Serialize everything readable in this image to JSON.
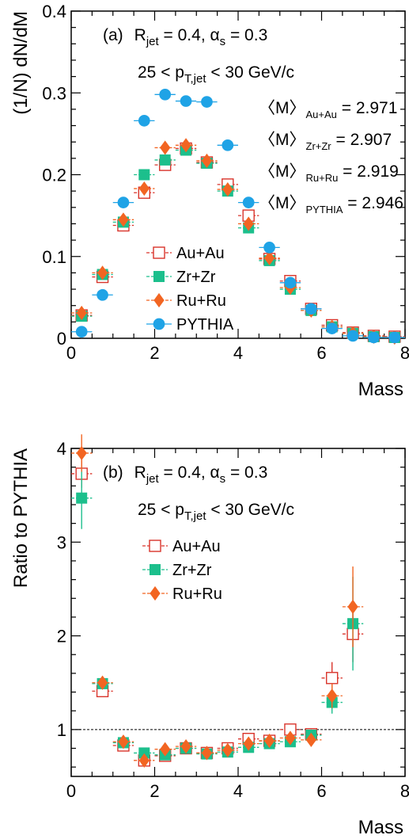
{
  "chart_data": [
    {
      "type": "scatter",
      "panel_label": "(a)",
      "annotation_main": "R",
      "annotation_main_sub": "jet",
      "annotation_main_rest": " = 0.4, α",
      "annotation_main_sub2": "s",
      "annotation_main_rest2": " = 0.3",
      "annotation_pt_pre": "25 < p",
      "annotation_pt_sub": "T,jet",
      "annotation_pt_post": " < 30 GeV/c",
      "xlabel": "Mass",
      "ylabel": "(1/N) dN/dM",
      "xlim": [
        0,
        8
      ],
      "ylim": [
        0,
        0.4
      ],
      "x_ticks": [
        0,
        2,
        4,
        6,
        8
      ],
      "x_tick_labels": [
        "0",
        "2",
        "4",
        "6",
        "8"
      ],
      "y_ticks": [
        0,
        0.1,
        0.2,
        0.3,
        0.4
      ],
      "y_tick_labels": [
        "0",
        "0.1",
        "0.2",
        "0.3",
        "0.4"
      ],
      "mean_mass": [
        {
          "label": "〈M〉",
          "sub": "Au+Au",
          "value": " = 2.971"
        },
        {
          "label": "〈M〉",
          "sub": "Zr+Zr",
          "value": " = 2.907"
        },
        {
          "label": "〈M〉",
          "sub": "Ru+Ru",
          "value": " = 2.919"
        },
        {
          "label": "〈M〉",
          "sub": "PYTHIA",
          "value": " = 2.946"
        }
      ],
      "legend_position": "bottom-left",
      "x": [
        0.25,
        0.75,
        1.25,
        1.75,
        2.25,
        2.75,
        3.25,
        3.75,
        4.25,
        4.75,
        5.25,
        5.75,
        6.25,
        6.75,
        7.25,
        7.75
      ],
      "series": [
        {
          "name": "Au+Au",
          "marker": "open-square",
          "color": "#d9342b",
          "values": [
            0.028,
            0.075,
            0.138,
            0.178,
            0.212,
            0.232,
            0.215,
            0.188,
            0.15,
            0.097,
            0.07,
            0.036,
            0.016,
            0.007,
            0.003,
            0.002
          ]
        },
        {
          "name": "Zr+Zr",
          "marker": "filled-square",
          "color": "#1cbf8c",
          "values": [
            0.027,
            0.078,
            0.142,
            0.2,
            0.218,
            0.23,
            0.214,
            0.18,
            0.135,
            0.095,
            0.06,
            0.034,
            0.014,
            0.006,
            0.002,
            0.001
          ]
        },
        {
          "name": "Ru+Ru",
          "marker": "filled-diamond",
          "color": "#f26522",
          "values": [
            0.031,
            0.08,
            0.145,
            0.183,
            0.233,
            0.236,
            0.217,
            0.182,
            0.14,
            0.098,
            0.062,
            0.034,
            0.014,
            0.006,
            0.002,
            0.001
          ]
        },
        {
          "name": "PYTHIA",
          "marker": "filled-circle",
          "color": "#1fa3e6",
          "values": [
            0.008,
            0.053,
            0.166,
            0.266,
            0.298,
            0.29,
            0.289,
            0.236,
            0.166,
            0.111,
            0.068,
            0.036,
            0.012,
            0.003,
            0.001,
            0.001
          ]
        }
      ]
    },
    {
      "type": "scatter",
      "panel_label": "(b)",
      "annotation_main": "R",
      "annotation_main_sub": "jet",
      "annotation_main_rest": " = 0.4, α",
      "annotation_main_sub2": "s",
      "annotation_main_rest2": " = 0.3",
      "annotation_pt_pre": "25 < p",
      "annotation_pt_sub": "T,jet",
      "annotation_pt_post": " < 30 GeV/c",
      "xlabel": "Mass",
      "ylabel": "Ratio to PYTHIA",
      "xlim": [
        0,
        8
      ],
      "ylim": [
        0.5,
        4.0
      ],
      "x_ticks": [
        0,
        2,
        4,
        6,
        8
      ],
      "x_tick_labels": [
        "0",
        "2",
        "4",
        "6",
        "8"
      ],
      "y_ticks": [
        1,
        2,
        3,
        4
      ],
      "y_tick_labels": [
        "1",
        "2",
        "3",
        "4"
      ],
      "reference_line": 1,
      "legend_position": "top-left",
      "x": [
        0.25,
        0.75,
        1.25,
        1.75,
        2.25,
        2.75,
        3.25,
        3.75,
        4.25,
        4.75,
        5.25,
        5.75,
        6.25,
        6.75
      ],
      "series": [
        {
          "name": "Au+Au",
          "marker": "open-square",
          "color": "#d9342b",
          "values": [
            3.73,
            1.41,
            0.83,
            0.67,
            0.72,
            0.8,
            0.75,
            0.8,
            0.9,
            0.88,
            1.0,
            0.95,
            1.55,
            2.02
          ],
          "errors": [
            0.15,
            0.05,
            0.04,
            0.04,
            0.03,
            0.03,
            0.03,
            0.03,
            0.04,
            0.05,
            0.05,
            0.06,
            0.17,
            0.3
          ]
        },
        {
          "name": "Zr+Zr",
          "marker": "filled-square",
          "color": "#1cbf8c",
          "values": [
            3.47,
            1.49,
            0.86,
            0.75,
            0.73,
            0.8,
            0.74,
            0.76,
            0.81,
            0.85,
            0.87,
            0.94,
            1.29,
            2.13
          ],
          "errors": [
            0.33,
            0.05,
            0.04,
            0.04,
            0.03,
            0.03,
            0.03,
            0.03,
            0.04,
            0.05,
            0.05,
            0.06,
            0.12,
            0.5
          ]
        },
        {
          "name": "Ru+Ru",
          "marker": "filled-diamond",
          "color": "#f26522",
          "values": [
            3.95,
            1.5,
            0.87,
            0.67,
            0.79,
            0.82,
            0.75,
            0.78,
            0.85,
            0.88,
            0.91,
            0.89,
            1.36,
            2.31
          ],
          "errors": [
            0.2,
            0.05,
            0.04,
            0.04,
            0.03,
            0.03,
            0.03,
            0.03,
            0.04,
            0.05,
            0.05,
            0.06,
            0.13,
            0.43
          ]
        }
      ]
    }
  ]
}
